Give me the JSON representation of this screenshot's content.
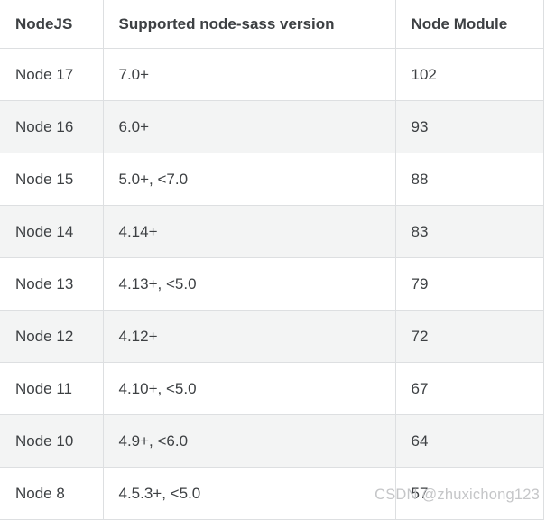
{
  "table": {
    "headers": [
      "NodeJS",
      "Supported node-sass version",
      "Node Module"
    ],
    "rows": [
      [
        "Node 17",
        "7.0+",
        "102"
      ],
      [
        "Node 16",
        "6.0+",
        "93"
      ],
      [
        "Node 15",
        "5.0+, <7.0",
        "88"
      ],
      [
        "Node 14",
        "4.14+",
        "83"
      ],
      [
        "Node 13",
        "4.13+, <5.0",
        "79"
      ],
      [
        "Node 12",
        "4.12+",
        "72"
      ],
      [
        "Node 11",
        "4.10+, <5.0",
        "67"
      ],
      [
        "Node 10",
        "4.9+, <6.0",
        "64"
      ],
      [
        "Node 8",
        "4.5.3+, <5.0",
        "57"
      ]
    ]
  },
  "watermark": {
    "text": "CSDN @zhuxichong123"
  },
  "colors": {
    "border": "#dddfe1",
    "stripe": "#f3f4f4",
    "text": "#3d4043",
    "watermark": "#c5c6c8"
  }
}
